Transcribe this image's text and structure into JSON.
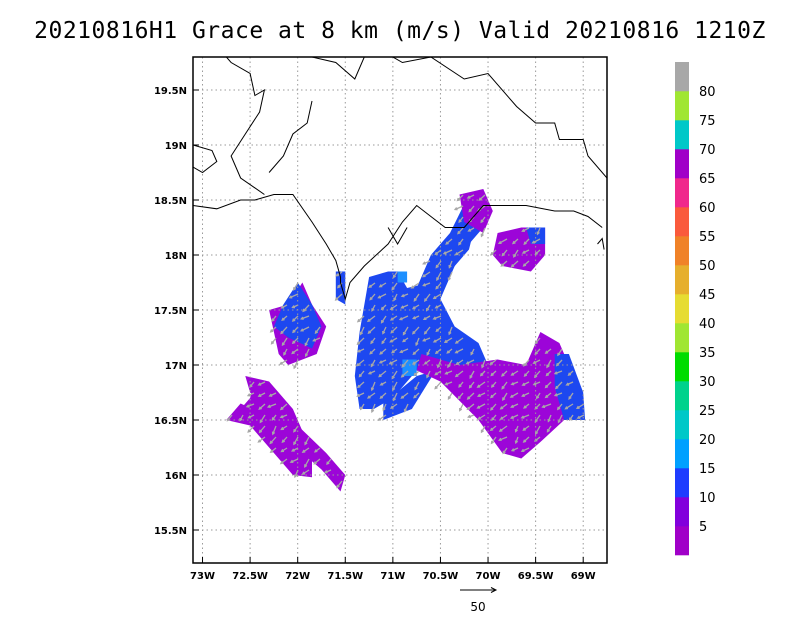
{
  "title": "20210816H1 Grace at 8 km (m/s) Valid 20210816  1210Z",
  "map": {
    "lon_range": [
      -73.1,
      -68.75
    ],
    "lat_range": [
      15.2,
      19.8
    ],
    "lon_ticks": [
      {
        "value": -73.0,
        "label": "73W"
      },
      {
        "value": -72.5,
        "label": "72.5W"
      },
      {
        "value": -72.0,
        "label": "72W"
      },
      {
        "value": -71.5,
        "label": "71.5W"
      },
      {
        "value": -71.0,
        "label": "71W"
      },
      {
        "value": -70.5,
        "label": "70.5W"
      },
      {
        "value": -70.0,
        "label": "70W"
      },
      {
        "value": -69.5,
        "label": "69.5W"
      },
      {
        "value": -69.0,
        "label": "69W"
      }
    ],
    "lat_ticks": [
      {
        "value": 15.5,
        "label": "15.5N"
      },
      {
        "value": 16.0,
        "label": "16N"
      },
      {
        "value": 16.5,
        "label": "16.5N"
      },
      {
        "value": 17.0,
        "label": "17N"
      },
      {
        "value": 17.5,
        "label": "17.5N"
      },
      {
        "value": 18.0,
        "label": "18N"
      },
      {
        "value": 18.5,
        "label": "18.5N"
      },
      {
        "value": 19.0,
        "label": "19N"
      },
      {
        "value": 19.5,
        "label": "19.5N"
      }
    ],
    "gridlines": true,
    "wind_colors": {
      "purple": "#9c05d8",
      "blue": "#1d48f0",
      "light_blue": "#1d90ff",
      "vector": "#a8a8a8"
    }
  },
  "colorbar": {
    "labels": [
      "5",
      "10",
      "15",
      "20",
      "25",
      "30",
      "35",
      "40",
      "45",
      "50",
      "55",
      "60",
      "65",
      "70",
      "75",
      "80"
    ],
    "colors": [
      "#a000c8",
      "#8200dc",
      "#1e3cff",
      "#00a0ff",
      "#00c8c8",
      "#00d28c",
      "#00dc00",
      "#a0e632",
      "#e6dc32",
      "#e6af2d",
      "#f08228",
      "#fa5a3c",
      "#f0288c",
      "#a000c8",
      "#00c8c8",
      "#a0e632",
      "#a8a8a8"
    ]
  },
  "reference_vector": {
    "label": "50"
  }
}
